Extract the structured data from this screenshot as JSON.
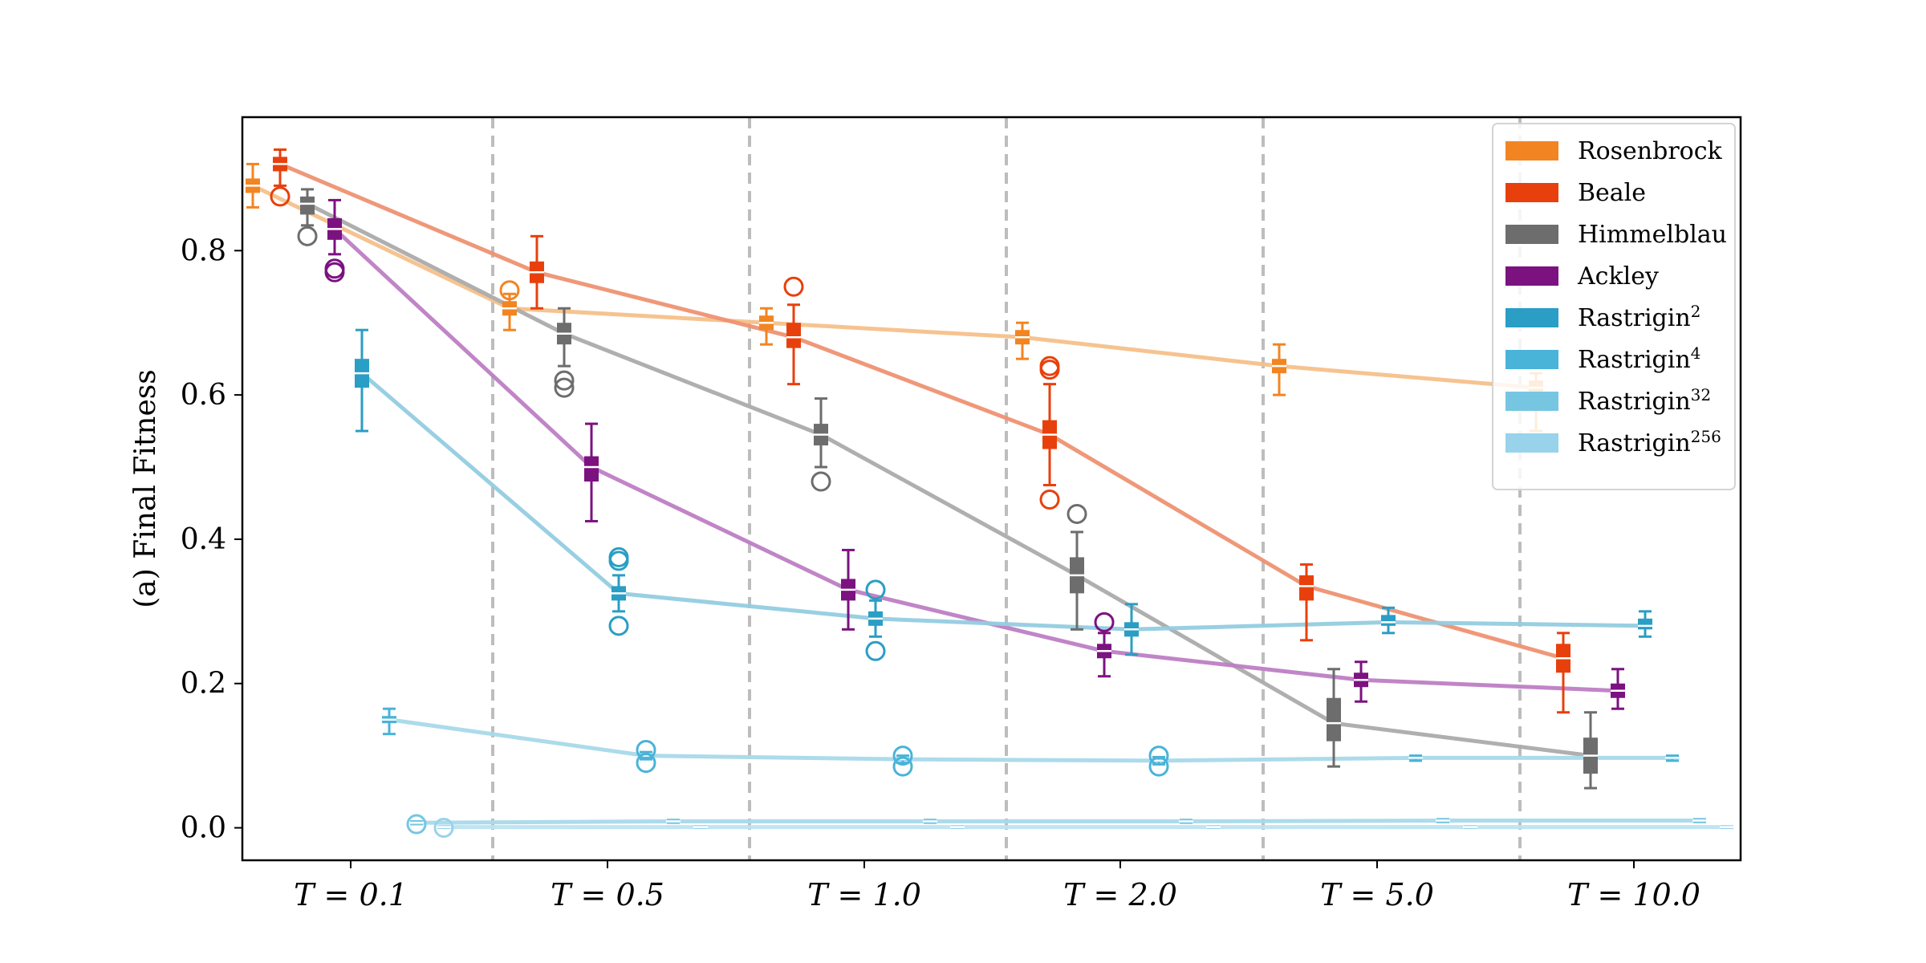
{
  "chart_data": {
    "type": "box",
    "ylabel": "(a) Final Fitness",
    "xlabel": "",
    "title": "",
    "ylim": [
      -0.045,
      0.985
    ],
    "yticks": [
      0.0,
      0.2,
      0.4,
      0.6,
      0.8
    ],
    "ytick_labels": [
      "0.0",
      "0.2",
      "0.4",
      "0.6",
      "0.8"
    ],
    "categories": [
      "T = 0.1",
      "T = 0.5",
      "T = 1.0",
      "T = 2.0",
      "T = 5.0",
      "T = 10.0"
    ],
    "grid": false,
    "legend_position": "top-right",
    "series": [
      {
        "name": "Rosenbrock",
        "sup": "",
        "color": "#f28522",
        "values": [
          {
            "median": 0.89,
            "q1": 0.88,
            "q3": 0.9,
            "whislo": 0.86,
            "whishi": 0.92,
            "fliers": []
          },
          {
            "median": 0.72,
            "q1": 0.71,
            "q3": 0.73,
            "whislo": 0.69,
            "whishi": 0.74,
            "fliers": [
              0.745
            ]
          },
          {
            "median": 0.7,
            "q1": 0.69,
            "q3": 0.71,
            "whislo": 0.67,
            "whishi": 0.72,
            "fliers": []
          },
          {
            "median": 0.68,
            "q1": 0.67,
            "q3": 0.69,
            "whislo": 0.65,
            "whishi": 0.7,
            "fliers": []
          },
          {
            "median": 0.64,
            "q1": 0.63,
            "q3": 0.65,
            "whislo": 0.6,
            "whishi": 0.67,
            "fliers": []
          },
          {
            "median": 0.61,
            "q1": 0.6,
            "q3": 0.62,
            "whislo": 0.55,
            "whishi": 0.63,
            "fliers": []
          }
        ]
      },
      {
        "name": "Beale",
        "sup": "",
        "color": "#e8400c",
        "values": [
          {
            "median": 0.92,
            "q1": 0.91,
            "q3": 0.93,
            "whislo": 0.89,
            "whishi": 0.94,
            "fliers": [
              0.875
            ]
          },
          {
            "median": 0.77,
            "q1": 0.755,
            "q3": 0.785,
            "whislo": 0.72,
            "whishi": 0.82,
            "fliers": []
          },
          {
            "median": 0.68,
            "q1": 0.665,
            "q3": 0.7,
            "whislo": 0.615,
            "whishi": 0.725,
            "fliers": [
              0.75
            ]
          },
          {
            "median": 0.545,
            "q1": 0.525,
            "q3": 0.565,
            "whislo": 0.475,
            "whishi": 0.615,
            "fliers": [
              0.455,
              0.635,
              0.64
            ]
          },
          {
            "median": 0.335,
            "q1": 0.315,
            "q3": 0.35,
            "whislo": 0.26,
            "whishi": 0.365,
            "fliers": []
          },
          {
            "median": 0.235,
            "q1": 0.215,
            "q3": 0.255,
            "whislo": 0.16,
            "whishi": 0.27,
            "fliers": []
          }
        ]
      },
      {
        "name": "Himmelblau",
        "sup": "",
        "color": "#6d6d6d",
        "values": [
          {
            "median": 0.865,
            "q1": 0.85,
            "q3": 0.875,
            "whislo": 0.835,
            "whishi": 0.885,
            "fliers": [
              0.82
            ]
          },
          {
            "median": 0.685,
            "q1": 0.67,
            "q3": 0.7,
            "whislo": 0.64,
            "whishi": 0.72,
            "fliers": [
              0.61,
              0.62
            ]
          },
          {
            "median": 0.545,
            "q1": 0.53,
            "q3": 0.56,
            "whislo": 0.5,
            "whishi": 0.595,
            "fliers": [
              0.48
            ]
          },
          {
            "median": 0.35,
            "q1": 0.325,
            "q3": 0.375,
            "whislo": 0.275,
            "whishi": 0.41,
            "fliers": [
              0.435
            ]
          },
          {
            "median": 0.145,
            "q1": 0.12,
            "q3": 0.18,
            "whislo": 0.085,
            "whishi": 0.22,
            "fliers": []
          },
          {
            "median": 0.1,
            "q1": 0.075,
            "q3": 0.125,
            "whislo": 0.055,
            "whishi": 0.16,
            "fliers": []
          }
        ]
      },
      {
        "name": "Ackley",
        "sup": "",
        "color": "#7b1280",
        "values": [
          {
            "median": 0.83,
            "q1": 0.815,
            "q3": 0.845,
            "whislo": 0.795,
            "whishi": 0.87,
            "fliers": [
              0.77,
              0.775
            ]
          },
          {
            "median": 0.5,
            "q1": 0.48,
            "q3": 0.515,
            "whislo": 0.425,
            "whishi": 0.56,
            "fliers": []
          },
          {
            "median": 0.33,
            "q1": 0.315,
            "q3": 0.345,
            "whislo": 0.275,
            "whishi": 0.385,
            "fliers": []
          },
          {
            "median": 0.245,
            "q1": 0.235,
            "q3": 0.255,
            "whislo": 0.21,
            "whishi": 0.27,
            "fliers": [
              0.285
            ]
          },
          {
            "median": 0.205,
            "q1": 0.195,
            "q3": 0.215,
            "whislo": 0.175,
            "whishi": 0.23,
            "fliers": []
          },
          {
            "median": 0.19,
            "q1": 0.18,
            "q3": 0.2,
            "whislo": 0.165,
            "whishi": 0.22,
            "fliers": []
          }
        ]
      },
      {
        "name": "Rastrigin",
        "sup": "2",
        "color": "#2a9ec4",
        "values": [
          {
            "median": 0.63,
            "q1": 0.61,
            "q3": 0.65,
            "whislo": 0.55,
            "whishi": 0.69,
            "fliers": []
          },
          {
            "median": 0.325,
            "q1": 0.315,
            "q3": 0.335,
            "whislo": 0.3,
            "whishi": 0.35,
            "fliers": [
              0.28,
              0.37,
              0.375
            ]
          },
          {
            "median": 0.29,
            "q1": 0.28,
            "q3": 0.3,
            "whislo": 0.265,
            "whishi": 0.315,
            "fliers": [
              0.245,
              0.33
            ]
          },
          {
            "median": 0.275,
            "q1": 0.265,
            "q3": 0.285,
            "whislo": 0.24,
            "whishi": 0.31,
            "fliers": []
          },
          {
            "median": 0.285,
            "q1": 0.28,
            "q3": 0.295,
            "whislo": 0.27,
            "whishi": 0.305,
            "fliers": []
          },
          {
            "median": 0.28,
            "q1": 0.275,
            "q3": 0.29,
            "whislo": 0.265,
            "whishi": 0.3,
            "fliers": []
          }
        ]
      },
      {
        "name": "Rastrigin",
        "sup": "4",
        "color": "#4ab3d8",
        "values": [
          {
            "median": 0.15,
            "q1": 0.145,
            "q3": 0.155,
            "whislo": 0.13,
            "whishi": 0.165,
            "fliers": []
          },
          {
            "median": 0.1,
            "q1": 0.098,
            "q3": 0.102,
            "whislo": 0.095,
            "whishi": 0.105,
            "fliers": [
              0.09,
              0.108
            ]
          },
          {
            "median": 0.095,
            "q1": 0.093,
            "q3": 0.097,
            "whislo": 0.09,
            "whishi": 0.1,
            "fliers": [
              0.085,
              0.1
            ]
          },
          {
            "median": 0.093,
            "q1": 0.091,
            "q3": 0.095,
            "whislo": 0.088,
            "whishi": 0.098,
            "fliers": [
              0.085,
              0.1
            ]
          },
          {
            "median": 0.097,
            "q1": 0.095,
            "q3": 0.099,
            "whislo": 0.093,
            "whishi": 0.1,
            "fliers": []
          },
          {
            "median": 0.097,
            "q1": 0.095,
            "q3": 0.099,
            "whislo": 0.093,
            "whishi": 0.1,
            "fliers": []
          }
        ]
      },
      {
        "name": "Rastrigin",
        "sup": "32",
        "color": "#76c6e2",
        "values": [
          {
            "median": 0.007,
            "q1": 0.006,
            "q3": 0.008,
            "whislo": 0.005,
            "whishi": 0.009,
            "fliers": [
              0.005
            ]
          },
          {
            "median": 0.009,
            "q1": 0.008,
            "q3": 0.01,
            "whislo": 0.007,
            "whishi": 0.011,
            "fliers": []
          },
          {
            "median": 0.009,
            "q1": 0.008,
            "q3": 0.01,
            "whislo": 0.007,
            "whishi": 0.011,
            "fliers": []
          },
          {
            "median": 0.009,
            "q1": 0.008,
            "q3": 0.01,
            "whislo": 0.007,
            "whishi": 0.011,
            "fliers": []
          },
          {
            "median": 0.01,
            "q1": 0.009,
            "q3": 0.011,
            "whislo": 0.008,
            "whishi": 0.012,
            "fliers": []
          },
          {
            "median": 0.01,
            "q1": 0.009,
            "q3": 0.011,
            "whislo": 0.008,
            "whishi": 0.012,
            "fliers": []
          }
        ]
      },
      {
        "name": "Rastrigin",
        "sup": "256",
        "color": "#98d3eb",
        "values": [
          {
            "median": 0.001,
            "q1": 0.0005,
            "q3": 0.0015,
            "whislo": 0.0,
            "whishi": 0.002,
            "fliers": [
              0.0
            ]
          },
          {
            "median": 0.001,
            "q1": 0.0005,
            "q3": 0.0015,
            "whislo": 0.0,
            "whishi": 0.002,
            "fliers": []
          },
          {
            "median": 0.001,
            "q1": 0.0005,
            "q3": 0.0015,
            "whislo": 0.0,
            "whishi": 0.002,
            "fliers": []
          },
          {
            "median": 0.001,
            "q1": 0.0005,
            "q3": 0.0015,
            "whislo": 0.0,
            "whishi": 0.002,
            "fliers": []
          },
          {
            "median": 0.001,
            "q1": 0.0005,
            "q3": 0.0015,
            "whislo": 0.0,
            "whishi": 0.002,
            "fliers": []
          },
          {
            "median": 0.001,
            "q1": 0.0005,
            "q3": 0.0015,
            "whislo": 0.0,
            "whishi": 0.002,
            "fliers": []
          }
        ]
      }
    ],
    "line_colors": [
      "#f6c08a",
      "#ee9272",
      "#ababab",
      "#bd7ec4",
      "#93cce0",
      "#a8d9ea",
      "#a8d9ea",
      "#bde3f1"
    ]
  }
}
